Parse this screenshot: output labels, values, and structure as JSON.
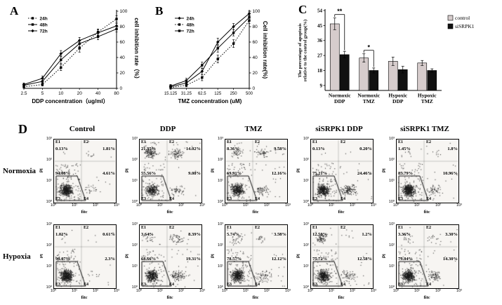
{
  "panels": {
    "a": {
      "label": "A"
    },
    "b": {
      "label": "B"
    },
    "c": {
      "label": "C"
    },
    "d": {
      "label": "D"
    }
  },
  "chart_data": [
    {
      "id": "A",
      "type": "line",
      "xlabel": "DDP concentration（ug/ml）",
      "ylabel": "cell inhibition rate（%）",
      "categories": [
        "2.5",
        "5",
        "10",
        "20",
        "40",
        "80"
      ],
      "ylim": [
        0,
        100
      ],
      "yticks": [
        0,
        20,
        40,
        60,
        80,
        100
      ],
      "legend_position": "top-left",
      "series": [
        {
          "name": "24h",
          "dash": "1.5,2",
          "marker": "square",
          "values": [
            2,
            5,
            27,
            52,
            73,
            90
          ],
          "errors": [
            2,
            2,
            4,
            5,
            4,
            4
          ]
        },
        {
          "name": "48h",
          "dash": "",
          "marker": "square",
          "values": [
            4,
            9,
            37,
            58,
            67,
            77
          ],
          "errors": [
            2,
            3,
            5,
            4,
            4,
            4
          ]
        },
        {
          "name": "72h",
          "dash": "",
          "marker": "diamond",
          "values": [
            5,
            13,
            45,
            62,
            72,
            81
          ],
          "errors": [
            2,
            3,
            4,
            4,
            4,
            3
          ]
        }
      ]
    },
    {
      "id": "B",
      "type": "line",
      "xlabel": "TMZ concentration (uM)",
      "ylabel": "Cell inhibition rate(%)",
      "categories": [
        "15.125",
        "31.25",
        "62.5",
        "125",
        "250",
        "500"
      ],
      "ylim": [
        0,
        100
      ],
      "yticks": [
        0,
        20,
        40,
        60,
        80,
        100
      ],
      "legend_position": "top-left",
      "series": [
        {
          "name": "24h",
          "dash": "",
          "marker": "diamond",
          "values": [
            2,
            7,
            22,
            60,
            80,
            97
          ],
          "errors": [
            2,
            3,
            4,
            5,
            4,
            3
          ]
        },
        {
          "name": "48h",
          "dash": "1.5,2",
          "marker": "square",
          "values": [
            1,
            4,
            14,
            38,
            58,
            88
          ],
          "errors": [
            2,
            2,
            4,
            5,
            5,
            4
          ]
        },
        {
          "name": "72h",
          "dash": "",
          "marker": "square",
          "values": [
            3,
            10,
            30,
            52,
            72,
            92
          ],
          "errors": [
            2,
            3,
            4,
            5,
            4,
            3
          ]
        }
      ]
    },
    {
      "id": "C",
      "type": "bar",
      "ylabel": "The percentage of apoptosis relative to the control group(%)",
      "ylabel_lines": [
        "The percentage of apoptosis",
        "relative to the control group(%)"
      ],
      "categories": [
        [
          "Normoxic",
          "DDP"
        ],
        [
          "Normoxic",
          "TMZ"
        ],
        [
          "Hypoxic",
          "DDP"
        ],
        [
          "Hypoxic",
          "TMZ"
        ]
      ],
      "ylim": [
        6,
        54
      ],
      "yticks": [
        9,
        18,
        27,
        36,
        45,
        54
      ],
      "legend_position": "top-right",
      "series": [
        {
          "name": "control",
          "color": "#d6cccc",
          "values": [
            46,
            25.5,
            23.5,
            22.5
          ],
          "errors": [
            3.5,
            2.5,
            2.5,
            1.5
          ]
        },
        {
          "name": "siSRPK1",
          "color": "#111111",
          "values": [
            27.5,
            18,
            18.5,
            18
          ],
          "errors": [
            2,
            1.5,
            2,
            1
          ]
        }
      ],
      "significance": [
        {
          "group": 0,
          "label": "**"
        },
        {
          "group": 1,
          "label": "*"
        }
      ]
    },
    {
      "id": "D",
      "type": "scatter",
      "subtype": "flow_cytometry_grid",
      "xlabel": "fitc",
      "ylabel": "PI",
      "xticks": [
        "10⁰",
        "10¹",
        "10²",
        "10³"
      ],
      "yticks": [
        "10³",
        "10²",
        "10¹",
        "10⁰"
      ],
      "quadrant_labels": [
        "E1",
        "E2",
        "E3",
        "E4"
      ],
      "col_headers": [
        "Control",
        "DDP",
        "TMZ",
        "siSRPK1 DDP",
        "siSRPK1 TMZ"
      ],
      "point_color": "#1a1a1a",
      "rows": [
        {
          "row_label": "Normoxia",
          "plots": [
            {
              "condition": "Control",
              "E1": "0.13%",
              "E2": "1.81%",
              "E3": "94.08%",
              "E4": "4.61%"
            },
            {
              "condition": "DDP",
              "E1": "21.35%",
              "E2": "14.02%",
              "E3": "55.56%",
              "E4": "9.08%"
            },
            {
              "condition": "TMZ",
              "E1": "8.36%",
              "E2": "9.58%",
              "E3": "69.91%",
              "E4": "12.16%"
            },
            {
              "condition": "siSRPK1 DDP",
              "E1": "0.13%",
              "E2": "0.20%",
              "E3": "75.21%",
              "E4": "24.46%"
            },
            {
              "condition": "siSRPK1 TMZ",
              "E1": "1.45%",
              "E2": "1.8%",
              "E3": "85.79%",
              "E4": "10.96%"
            }
          ]
        },
        {
          "row_label": "Hypoxia",
          "plots": [
            {
              "condition": "Control",
              "E1": "1.02%",
              "E2": "0.61%",
              "E3": "96.07%",
              "E4": "2.3%"
            },
            {
              "condition": "DDP",
              "E1": "3.64%",
              "E2": "8.39%",
              "E3": "68.66%",
              "E4": "19.31%"
            },
            {
              "condition": "TMZ",
              "E1": "5.74%",
              "E2": "3.58%",
              "E3": "78.57%",
              "E4": "12.12%"
            },
            {
              "condition": "siSRPK1 DDP",
              "E1": "12.50%",
              "E2": "1.2%",
              "E3": "75.72%",
              "E4": "12.58%"
            },
            {
              "condition": "siSRPK1 TMZ",
              "E1": "3.36%",
              "E2": "3.30%",
              "E3": "79.04%",
              "E4": "14.30%"
            }
          ]
        }
      ]
    }
  ]
}
